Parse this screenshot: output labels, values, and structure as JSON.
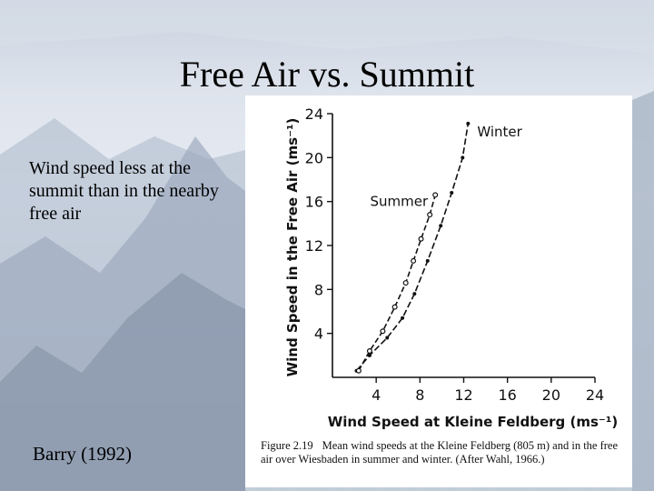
{
  "slide": {
    "title": "Free Air vs. Summit",
    "bullet": "Wind speed less at the summit than in the nearby free air",
    "citation": "Barry (1992)"
  },
  "caption": {
    "figure_number": "Figure 2.19",
    "text": "Mean wind speeds at the Kleine Feldberg (805 m) and in the free air over Wiesbaden in summer and winter. (After Wahl, 1966.)"
  },
  "chart_data": {
    "type": "line",
    "xlabel": "Wind Speed at Kleine Feldberg (ms⁻¹)",
    "ylabel": "Wind Speed in the Free Air (ms⁻¹)",
    "xlim": [
      0,
      24
    ],
    "ylim": [
      0,
      24
    ],
    "x_ticks": [
      4,
      8,
      12,
      16,
      20,
      24
    ],
    "y_ticks": [
      4,
      8,
      12,
      16,
      20,
      24
    ],
    "grid": false,
    "series": [
      {
        "name": "Winter",
        "marker": "dot",
        "points": [
          [
            2.2,
            0.6
          ],
          [
            3.4,
            2.0
          ],
          [
            5.0,
            3.6
          ],
          [
            6.4,
            5.4
          ],
          [
            7.5,
            7.6
          ],
          [
            8.7,
            10.6
          ],
          [
            9.9,
            13.8
          ],
          [
            10.9,
            16.8
          ],
          [
            11.9,
            20.0
          ],
          [
            12.4,
            23.1
          ]
        ]
      },
      {
        "name": "Summer",
        "marker": "circle",
        "points": [
          [
            2.4,
            0.6
          ],
          [
            3.4,
            2.4
          ],
          [
            4.6,
            4.2
          ],
          [
            5.7,
            6.4
          ],
          [
            6.7,
            8.6
          ],
          [
            7.4,
            10.6
          ],
          [
            8.1,
            12.6
          ],
          [
            8.9,
            14.8
          ],
          [
            9.4,
            16.6
          ]
        ]
      }
    ]
  }
}
